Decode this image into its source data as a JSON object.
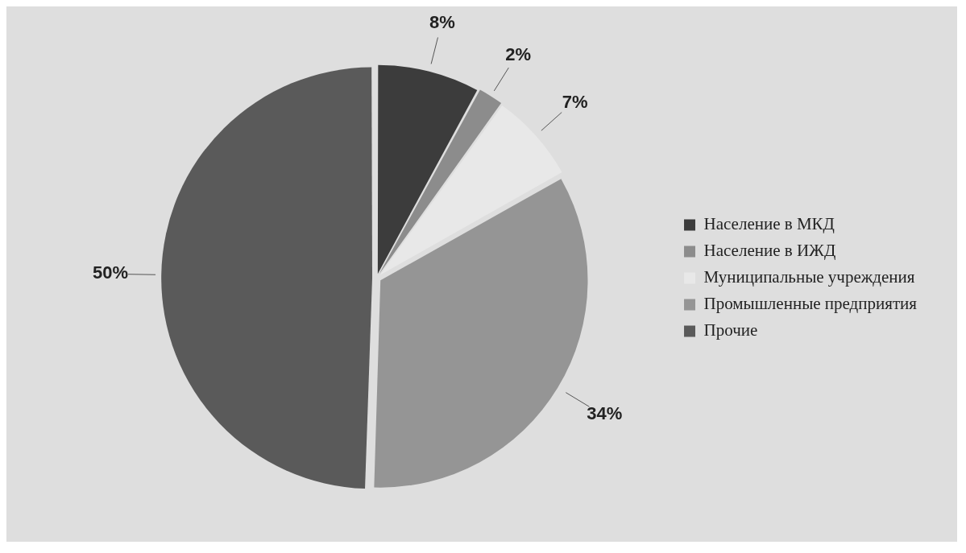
{
  "chart_data": {
    "type": "pie",
    "categories": [
      "Население в МКД",
      "Население в ИЖД",
      "Муниципальные учреждения",
      "Промышленные предприятия",
      "Прочие"
    ],
    "values": [
      8,
      2,
      7,
      34,
      50
    ],
    "value_labels": [
      "8%",
      "2%",
      "7%",
      "34%",
      "50%"
    ],
    "colors": [
      "#3c3c3c",
      "#8c8c8c",
      "#e8e8e8",
      "#959595",
      "#5a5a5a"
    ],
    "legend": "right"
  }
}
